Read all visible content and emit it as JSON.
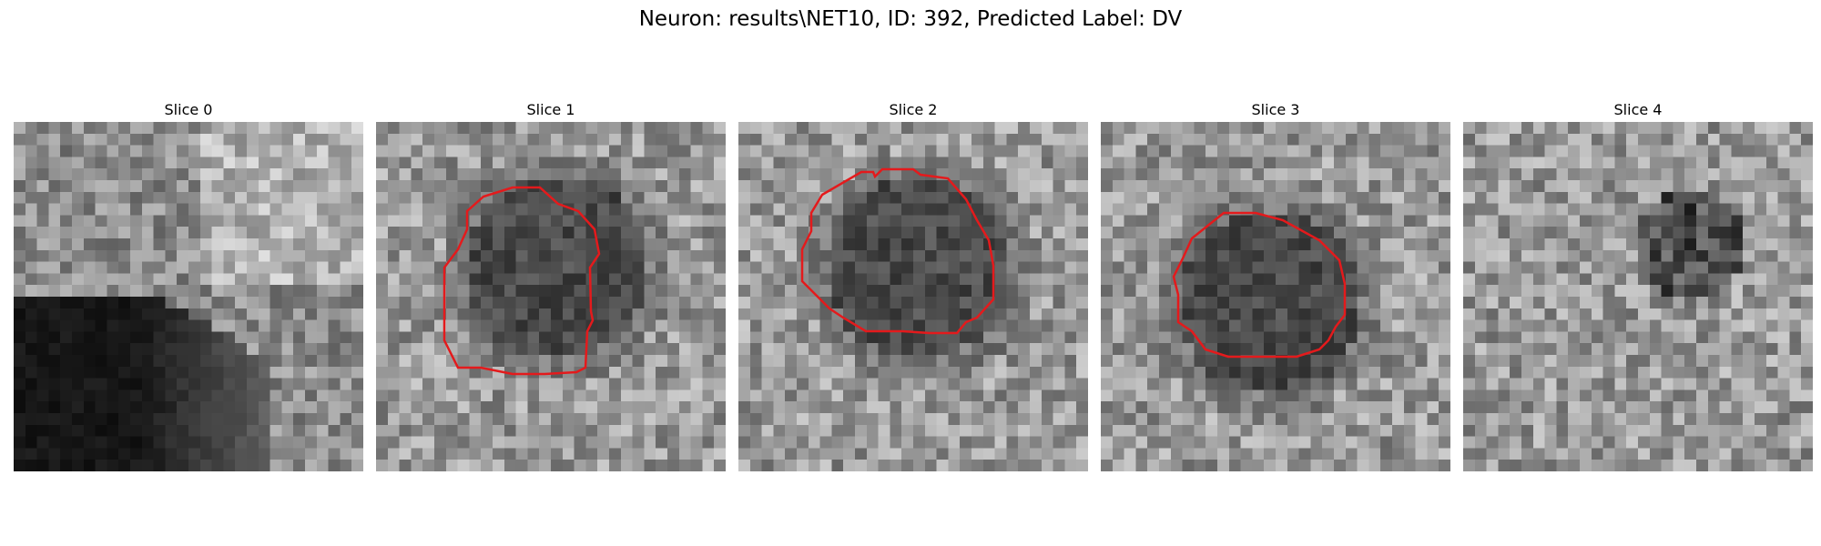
{
  "figure": {
    "title": "Neuron: results\\NET10, ID: 392, Predicted Label: DV"
  },
  "panels": [
    {
      "title": "Slice 0",
      "has_contour": false,
      "pattern": "corner"
    },
    {
      "title": "Slice 1",
      "has_contour": true,
      "pattern": "blob"
    },
    {
      "title": "Slice 2",
      "has_contour": true,
      "pattern": "blob"
    },
    {
      "title": "Slice 3",
      "has_contour": true,
      "pattern": "blob"
    },
    {
      "title": "Slice 4",
      "has_contour": false,
      "pattern": "faint"
    }
  ],
  "colors": {
    "contour": "#e41a1c"
  }
}
